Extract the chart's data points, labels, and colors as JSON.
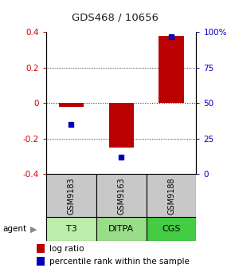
{
  "title": "GDS468 / 10656",
  "samples": [
    "GSM9183",
    "GSM9163",
    "GSM9188"
  ],
  "agents": [
    "T3",
    "DITPA",
    "CGS"
  ],
  "log_ratio": [
    -0.02,
    -0.25,
    0.38
  ],
  "percentile_rank": [
    35,
    12,
    97
  ],
  "ylim_left": [
    -0.4,
    0.4
  ],
  "ylim_right": [
    0,
    100
  ],
  "bar_color": "#bb0000",
  "dot_color": "#0000bb",
  "sample_bg": "#c8c8c8",
  "agent_colors": [
    "#bbeeaa",
    "#99dd88",
    "#44cc44"
  ],
  "zero_line_color": "#cc0000",
  "left_tick_color": "#cc0000",
  "right_tick_color": "#0000cc",
  "title_color": "#222222"
}
